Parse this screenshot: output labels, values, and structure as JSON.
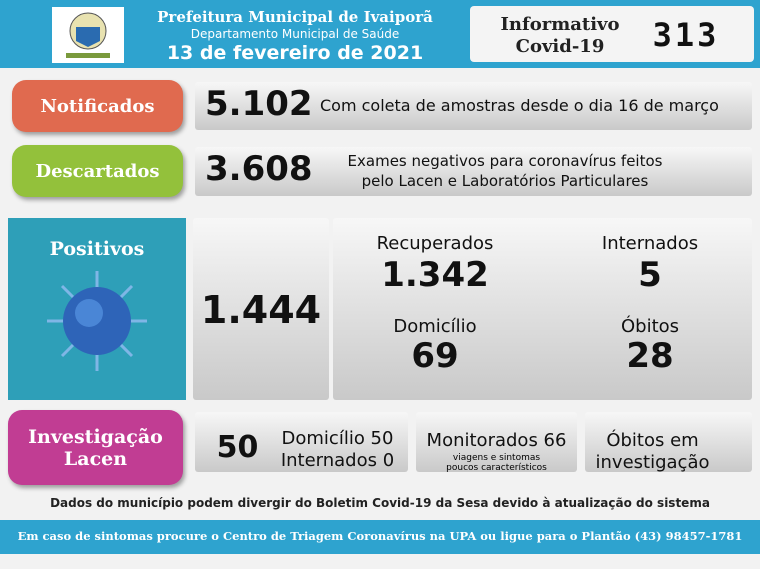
{
  "header": {
    "title": "Prefeitura Municipal de Ivaiporã",
    "subtitle": "Departamento Municipal de Saúde",
    "date": "13 de fevereiro de 2021",
    "bulletin_label": [
      "Informativo",
      "Covid-19"
    ],
    "bulletin_number": "313"
  },
  "notificados": {
    "label": "Notificados",
    "value": "5.102",
    "note": "Com coleta de amostras desde o dia 16 de março"
  },
  "descartados": {
    "label": "Descartados",
    "value": "3.608",
    "note": [
      "Exames negativos para coronavírus feitos",
      "pelo Lacen e Laboratórios Particulares"
    ]
  },
  "positivos": {
    "label": "Positivos",
    "value": "1.444",
    "items": [
      {
        "label": "Recuperados",
        "value": "1.342"
      },
      {
        "label": "Internados",
        "value": "5"
      },
      {
        "label": "Domicílio",
        "value": "69"
      },
      {
        "label": "Óbitos",
        "value": "28"
      }
    ]
  },
  "investigacao": {
    "label": [
      "Investigação",
      "Lacen"
    ],
    "value": "50",
    "detail": [
      "Domicílio 50",
      "Internados 0"
    ],
    "monitorados": "Monitorados 66",
    "monitorados_note": [
      "viagens e sintomas",
      "poucos característicos"
    ],
    "obitos": [
      "Óbitos em",
      "investigação"
    ]
  },
  "disclaimer": "Dados do município podem divergir do Boletim Covid-19 da Sesa devido à atualização do sistema",
  "footer": "Em caso de sintomas procure o Centro de Triagem Coronavírus na UPA ou ligue para o Plantão (43) 98457-1781"
}
